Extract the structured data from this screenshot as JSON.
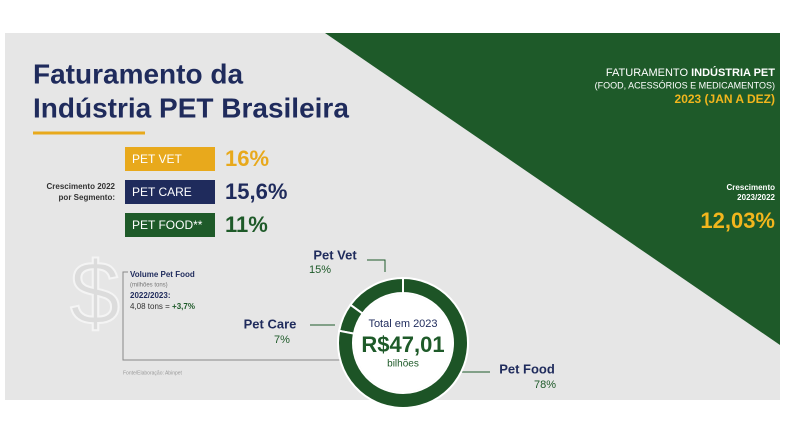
{
  "header": {
    "title_line1": "Faturamento da",
    "title_line2": "Indústria PET Brasileira"
  },
  "segments": {
    "caption_line1": "Crescimento 2022",
    "caption_line2": "por Segmento:",
    "items": [
      {
        "label": "PET VET",
        "value": "16%"
      },
      {
        "label": "PET CARE",
        "value": "15,6%"
      },
      {
        "label": "PET FOOD**",
        "value": "11%"
      }
    ]
  },
  "summary": {
    "line1_a": "FATURAMENTO ",
    "line1_b": "INDÚSTRIA PET",
    "line2": "(FOOD, ACESSÓRIOS E MEDICAMENTOS)",
    "line3": "2023 (JAN A DEZ)",
    "growth_label1": "Crescimento",
    "growth_label2": "2023/2022",
    "growth_value": "12,03%"
  },
  "volume": {
    "title": "Volume Pet Food",
    "unit": "(milhões tons)",
    "period": "2022/2023:",
    "text": "4,08 tons = ",
    "change": "+3,7%"
  },
  "source": "Fonte/Elaboração: Abinpet",
  "chart_data": {
    "type": "donut",
    "categories": [
      "Pet Vet",
      "Pet Care",
      "Pet Food"
    ],
    "values": [
      15,
      7,
      78
    ],
    "value_labels": [
      "15%",
      "7%",
      "78%"
    ],
    "color": "#1d5426",
    "center_title": "Total em 2023",
    "center_value": "R$47,01",
    "center_unit": "bilhões"
  }
}
